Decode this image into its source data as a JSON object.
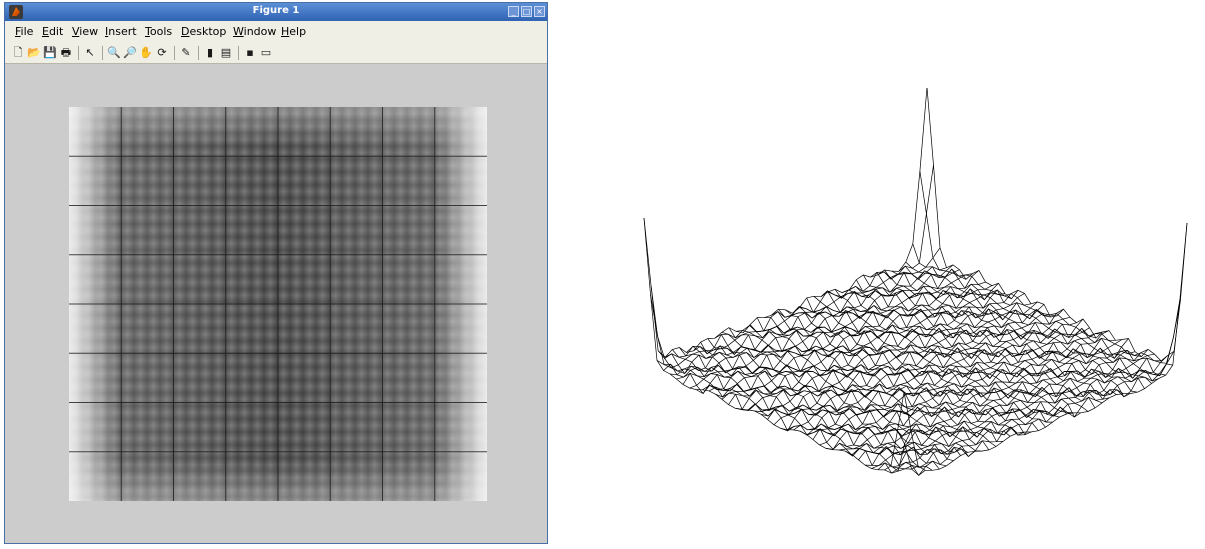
{
  "window": {
    "title": "Figure 1",
    "buttons": [
      "minimize",
      "maximize",
      "close"
    ]
  },
  "menu": [
    {
      "label": "File",
      "accel": "F",
      "rest": "ile"
    },
    {
      "label": "Edit",
      "accel": "E",
      "rest": "dit"
    },
    {
      "label": "View",
      "accel": "V",
      "rest": "iew"
    },
    {
      "label": "Insert",
      "accel": "I",
      "rest": "nsert"
    },
    {
      "label": "Tools",
      "accel": "T",
      "rest": "ools"
    },
    {
      "label": "Desktop",
      "accel": "D",
      "rest": "esktop"
    },
    {
      "label": "Window",
      "accel": "W",
      "rest": "indow"
    },
    {
      "label": "Help",
      "accel": "H",
      "rest": "elp"
    }
  ],
  "toolbar": [
    {
      "name": "new-figure-icon",
      "glyph": "🗋"
    },
    {
      "name": "open-file-icon",
      "glyph": "📂"
    },
    {
      "name": "save-icon",
      "glyph": "💾"
    },
    {
      "name": "print-icon",
      "glyph": "🖶"
    },
    {
      "name": "edit-plot-icon",
      "glyph": "↖"
    },
    {
      "name": "zoom-in-icon",
      "glyph": "🔍"
    },
    {
      "name": "zoom-out-icon",
      "glyph": "🔎"
    },
    {
      "name": "pan-icon",
      "glyph": "✋"
    },
    {
      "name": "rotate-3d-icon",
      "glyph": "⟳"
    },
    {
      "name": "data-cursor-icon",
      "glyph": "✎"
    },
    {
      "name": "colorbar-icon",
      "glyph": "▮"
    },
    {
      "name": "legend-icon",
      "glyph": "▤"
    },
    {
      "name": "hide-plot-tools-icon",
      "glyph": "▪"
    },
    {
      "name": "show-plot-tools-icon",
      "glyph": "▭"
    }
  ],
  "colors": {
    "titlebar_top": "#5b8fd6",
    "titlebar_bottom": "#2f63b3",
    "figure_background": "#cccccc",
    "menubar": "#f0efe6"
  }
}
